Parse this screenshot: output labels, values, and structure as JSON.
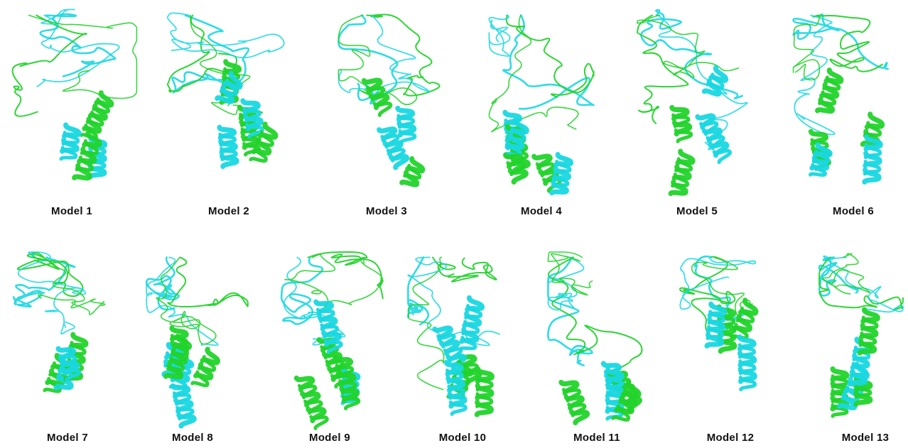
{
  "colors": {
    "structure_a": "#22d32b",
    "structure_b": "#19d7e0",
    "background": "#ffffff",
    "label": "#111111"
  },
  "models": [
    {
      "label": "Model  1"
    },
    {
      "label": "Model  2"
    },
    {
      "label": "Model  3"
    },
    {
      "label": "Model  4"
    },
    {
      "label": "Model  5"
    },
    {
      "label": "Model  6"
    },
    {
      "label": "Model  7"
    },
    {
      "label": "Model  8"
    },
    {
      "label": "Model  9"
    },
    {
      "label": "Model  10"
    },
    {
      "label": "Model  11"
    },
    {
      "label": "Model  12"
    },
    {
      "label": "Model  13"
    }
  ]
}
